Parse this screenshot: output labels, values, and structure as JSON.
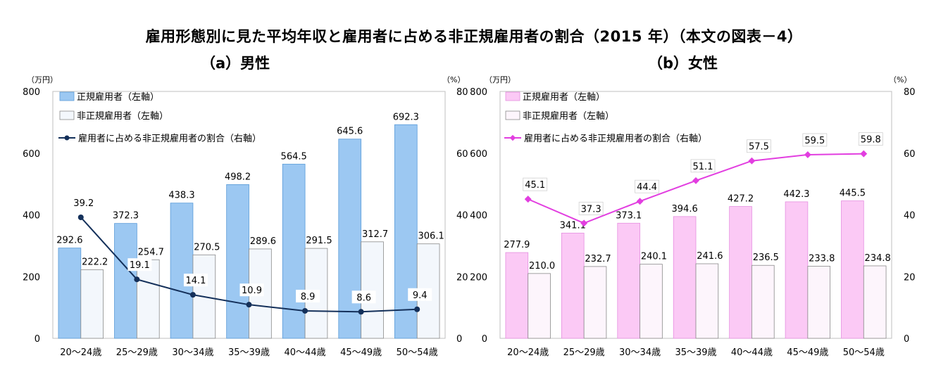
{
  "title": "雇用形態別に見た平均年収と雇用者に占める非正規雇用者の割合（2015 年）（本文の図表－4）",
  "chart_data": [
    {
      "type": "bar",
      "title": "（a）男性",
      "left_unit": "（万円）",
      "right_unit": "（%）",
      "categories": [
        "20～24歳",
        "25～29歳",
        "30～34歳",
        "35～39歳",
        "40～44歳",
        "45～49歳",
        "50～54歳"
      ],
      "left_ylim": [
        0,
        800
      ],
      "left_ticks": [
        "0",
        "200",
        "400",
        "600",
        "800"
      ],
      "right_ylim": [
        0,
        80
      ],
      "right_ticks": [
        "0",
        "20",
        "40",
        "60",
        "80"
      ],
      "legend_position": "top-left",
      "series": [
        {
          "name": "正規雇用者（左軸）",
          "kind": "bar",
          "axis": "left",
          "color": "#9cc8f2",
          "values": [
            292.6,
            372.3,
            438.3,
            498.2,
            564.5,
            645.6,
            692.3
          ],
          "labels": [
            "292.6",
            "372.3",
            "438.3",
            "498.2",
            "564.5",
            "645.6",
            "692.3"
          ]
        },
        {
          "name": "非正規雇用者（左軸）",
          "kind": "bar",
          "axis": "left",
          "color": "#f3f7fc",
          "values": [
            222.2,
            254.7,
            270.5,
            289.6,
            291.5,
            312.7,
            306.1
          ],
          "labels": [
            "222.2",
            "254.7",
            "270.5",
            "289.6",
            "291.5",
            "312.7",
            "306.1"
          ]
        },
        {
          "name": "雇用者に占める非正規雇用者の割合（右軸）",
          "kind": "line",
          "axis": "right",
          "color": "#14305a",
          "values": [
            39.2,
            19.1,
            14.1,
            10.9,
            8.9,
            8.6,
            9.4
          ],
          "labels": [
            "39.2",
            "19.1",
            "14.1",
            "10.9",
            "8.9",
            "8.6",
            "9.4"
          ]
        }
      ]
    },
    {
      "type": "bar",
      "title": "（b）女性",
      "left_unit": "（万円）",
      "right_unit": "（%）",
      "categories": [
        "20～24歳",
        "25～29歳",
        "30～34歳",
        "35～39歳",
        "40～44歳",
        "45～49歳",
        "50～54歳"
      ],
      "left_ylim": [
        0,
        800
      ],
      "left_ticks": [
        "0",
        "200",
        "400",
        "600",
        "800"
      ],
      "right_ylim": [
        0,
        80
      ],
      "right_ticks": [
        "0",
        "20",
        "40",
        "60",
        "80"
      ],
      "legend_position": "top-left",
      "series": [
        {
          "name": "正規雇用者（左軸）",
          "kind": "bar",
          "axis": "left",
          "color": "#fbc9f5",
          "values": [
            277.9,
            341.1,
            373.1,
            394.6,
            427.2,
            442.3,
            445.5
          ],
          "labels": [
            "277.9",
            "341.1",
            "373.1",
            "394.6",
            "427.2",
            "442.3",
            "445.5"
          ]
        },
        {
          "name": "非正規雇用者（左軸）",
          "kind": "bar",
          "axis": "left",
          "color": "#fdf5fc",
          "values": [
            210.0,
            232.7,
            240.1,
            241.6,
            236.5,
            233.8,
            234.8
          ],
          "labels": [
            "210.0",
            "232.7",
            "240.1",
            "241.6",
            "236.5",
            "233.8",
            "234.8"
          ]
        },
        {
          "name": "雇用者に占める非正規雇用者の割合（右軸）",
          "kind": "line",
          "axis": "right",
          "color": "#e23ee0",
          "values": [
            45.1,
            37.3,
            44.4,
            51.1,
            57.5,
            59.5,
            59.8
          ],
          "labels": [
            "45.1",
            "37.3",
            "44.4",
            "51.1",
            "57.5",
            "59.5",
            "59.8"
          ]
        }
      ]
    }
  ]
}
